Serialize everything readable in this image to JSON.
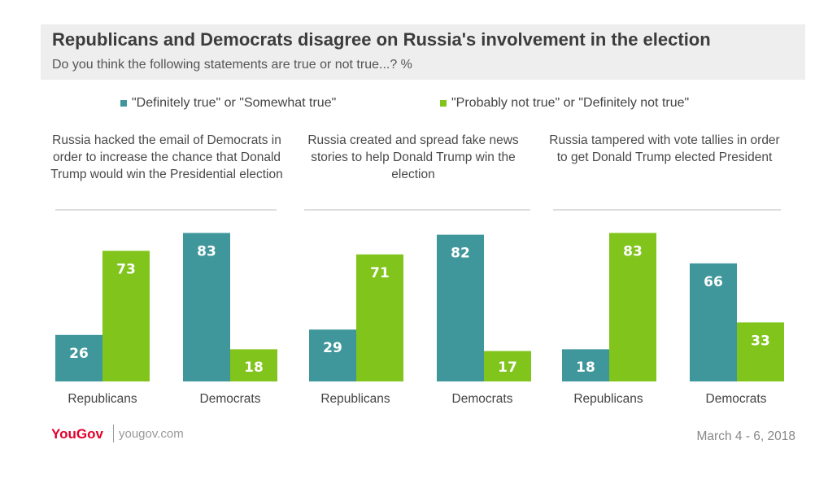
{
  "title": "Republicans and Democrats disagree on Russia's involvement in the election",
  "subtitle": "Do you think the following statements are true or not true...? %",
  "legend": [
    {
      "label": "\"Definitely true\" or \"Somewhat true\"",
      "color": "#40979b"
    },
    {
      "label": "\"Probably not true\" or \"Definitely not true\"",
      "color": "#80c41c"
    }
  ],
  "colors": {
    "true": "#40979b",
    "not_true": "#80c41c",
    "value_label": "#ffffff"
  },
  "footer": {
    "brand": "YouGov",
    "site": "yougov.com",
    "date": "March 4 - 6, 2018"
  },
  "chart_data": [
    {
      "type": "bar",
      "title": "Russia hacked the email of Democrats in order to increase the chance that Donald Trump would win the Presidential election",
      "categories": [
        "Republicans",
        "Democrats"
      ],
      "series": [
        {
          "name": "\"Definitely true\" or \"Somewhat true\"",
          "values": [
            26,
            83
          ]
        },
        {
          "name": "\"Probably not true\" or \"Definitely not true\"",
          "values": [
            73,
            18
          ]
        }
      ],
      "ylim": [
        0,
        100
      ]
    },
    {
      "type": "bar",
      "title": "Russia created and spread fake news stories to help Donald Trump win the election",
      "categories": [
        "Republicans",
        "Democrats"
      ],
      "series": [
        {
          "name": "\"Definitely true\" or \"Somewhat true\"",
          "values": [
            29,
            82
          ]
        },
        {
          "name": "\"Probably not true\" or \"Definitely not true\"",
          "values": [
            71,
            17
          ]
        }
      ],
      "ylim": [
        0,
        100
      ]
    },
    {
      "type": "bar",
      "title": "Russia tampered with vote tallies in order to get Donald Trump elected President",
      "categories": [
        "Republicans",
        "Democrats"
      ],
      "series": [
        {
          "name": "\"Definitely true\" or \"Somewhat true\"",
          "values": [
            18,
            66
          ]
        },
        {
          "name": "\"Probably not true\" or \"Definitely not true\"",
          "values": [
            83,
            33
          ]
        }
      ],
      "ylim": [
        0,
        100
      ]
    }
  ]
}
